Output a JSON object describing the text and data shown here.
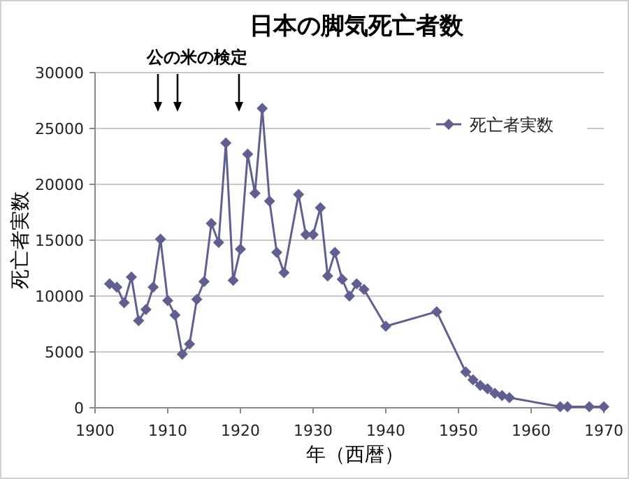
{
  "chart_data": {
    "type": "line",
    "title": "日本の脚気死亡者数",
    "xlabel": "年（西暦）",
    "ylabel": "死亡者実数",
    "x": [
      1902,
      1903,
      1904,
      1905,
      1906,
      1907,
      1908,
      1909,
      1910,
      1911,
      1912,
      1913,
      1914,
      1915,
      1916,
      1917,
      1918,
      1919,
      1920,
      1921,
      1922,
      1923,
      1924,
      1925,
      1926,
      1928,
      1929,
      1930,
      1931,
      1932,
      1933,
      1934,
      1935,
      1936,
      1937,
      1940,
      1947,
      1951,
      1952,
      1953,
      1954,
      1955,
      1956,
      1957,
      1964,
      1965,
      1968,
      1970
    ],
    "series": [
      {
        "name": "死亡者実数",
        "color": "#5f5f91",
        "values": [
          11100,
          10800,
          9400,
          11700,
          7800,
          8800,
          10800,
          15100,
          9600,
          8300,
          4800,
          5700,
          9700,
          11300,
          16500,
          14800,
          23700,
          11400,
          14200,
          22700,
          19200,
          26800,
          18500,
          13900,
          12100,
          19100,
          15500,
          15500,
          17900,
          11800,
          13900,
          11500,
          10000,
          11100,
          10600,
          7300,
          8600,
          3200,
          2500,
          2000,
          1700,
          1300,
          1100,
          900,
          100,
          100,
          100,
          100
        ]
      }
    ],
    "xlim": [
      1900,
      1970
    ],
    "xticks": [
      1900,
      1910,
      1920,
      1930,
      1940,
      1950,
      1960,
      1970
    ],
    "ylim": [
      0,
      30000
    ],
    "yticks": [
      0,
      5000,
      10000,
      15000,
      20000,
      25000,
      30000
    ],
    "grid": "y",
    "legend": "top right",
    "marker": "diamond",
    "line_style": "solid",
    "annotations": [
      "公の米の検定"
    ]
  }
}
